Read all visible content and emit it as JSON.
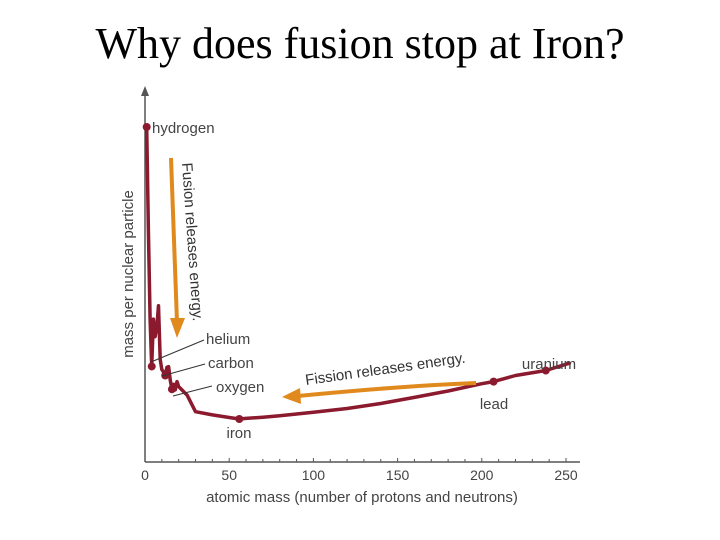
{
  "slide": {
    "title": "Why does fusion stop at Iron?"
  },
  "colors": {
    "curve": "#8b1a2e",
    "arrow": "#e08a1e",
    "axis": "#555555"
  },
  "chart_data": {
    "type": "line",
    "xlabel": "atomic mass (number of protons and neutrons)",
    "ylabel": "mass per nuclear particle",
    "xlim": [
      0,
      250
    ],
    "xticks": [
      0,
      50,
      100,
      150,
      200,
      250
    ],
    "yticks_shown": false,
    "series": [
      {
        "values_note_free": true,
        "x": [
          1,
          2,
          3,
          4,
          5,
          6,
          7,
          8,
          9,
          10,
          11,
          12,
          13,
          14,
          15,
          16,
          17,
          18,
          19,
          20,
          25,
          30,
          40,
          50,
          56,
          60,
          70,
          80,
          90,
          100,
          120,
          140,
          160,
          180,
          200,
          207,
          220,
          238,
          252
        ],
        "y": [
          100,
          64.5,
          34.2,
          18.0,
          34.2,
          28.2,
          31.5,
          38.8,
          20.4,
          17.0,
          16.1,
          14.9,
          17.7,
          17.9,
          13.2,
          10.2,
          11.9,
          10.0,
          12.8,
          11.1,
          8.2,
          2.5,
          1.4,
          0.5,
          0.0,
          0.2,
          0.6,
          1.1,
          1.7,
          2.3,
          3.6,
          5.3,
          7.4,
          9.6,
          12.1,
          12.8,
          14.9,
          16.6,
          19.1
        ]
      }
    ],
    "points": [
      {
        "label": "hydrogen",
        "x": 1,
        "y": 100
      },
      {
        "label": "helium",
        "x": 4,
        "y": 18.0
      },
      {
        "label": "carbon",
        "x": 12,
        "y": 14.9
      },
      {
        "label": "oxygen",
        "x": 16,
        "y": 10.2
      },
      {
        "label": "iron",
        "x": 56,
        "y": 0.0
      },
      {
        "label": "lead",
        "x": 207,
        "y": 12.8
      },
      {
        "label": "uranium",
        "x": 238,
        "y": 16.6
      }
    ],
    "annotations": {
      "fusion": "Fusion releases energy.",
      "fission": "Fission releases energy."
    }
  }
}
